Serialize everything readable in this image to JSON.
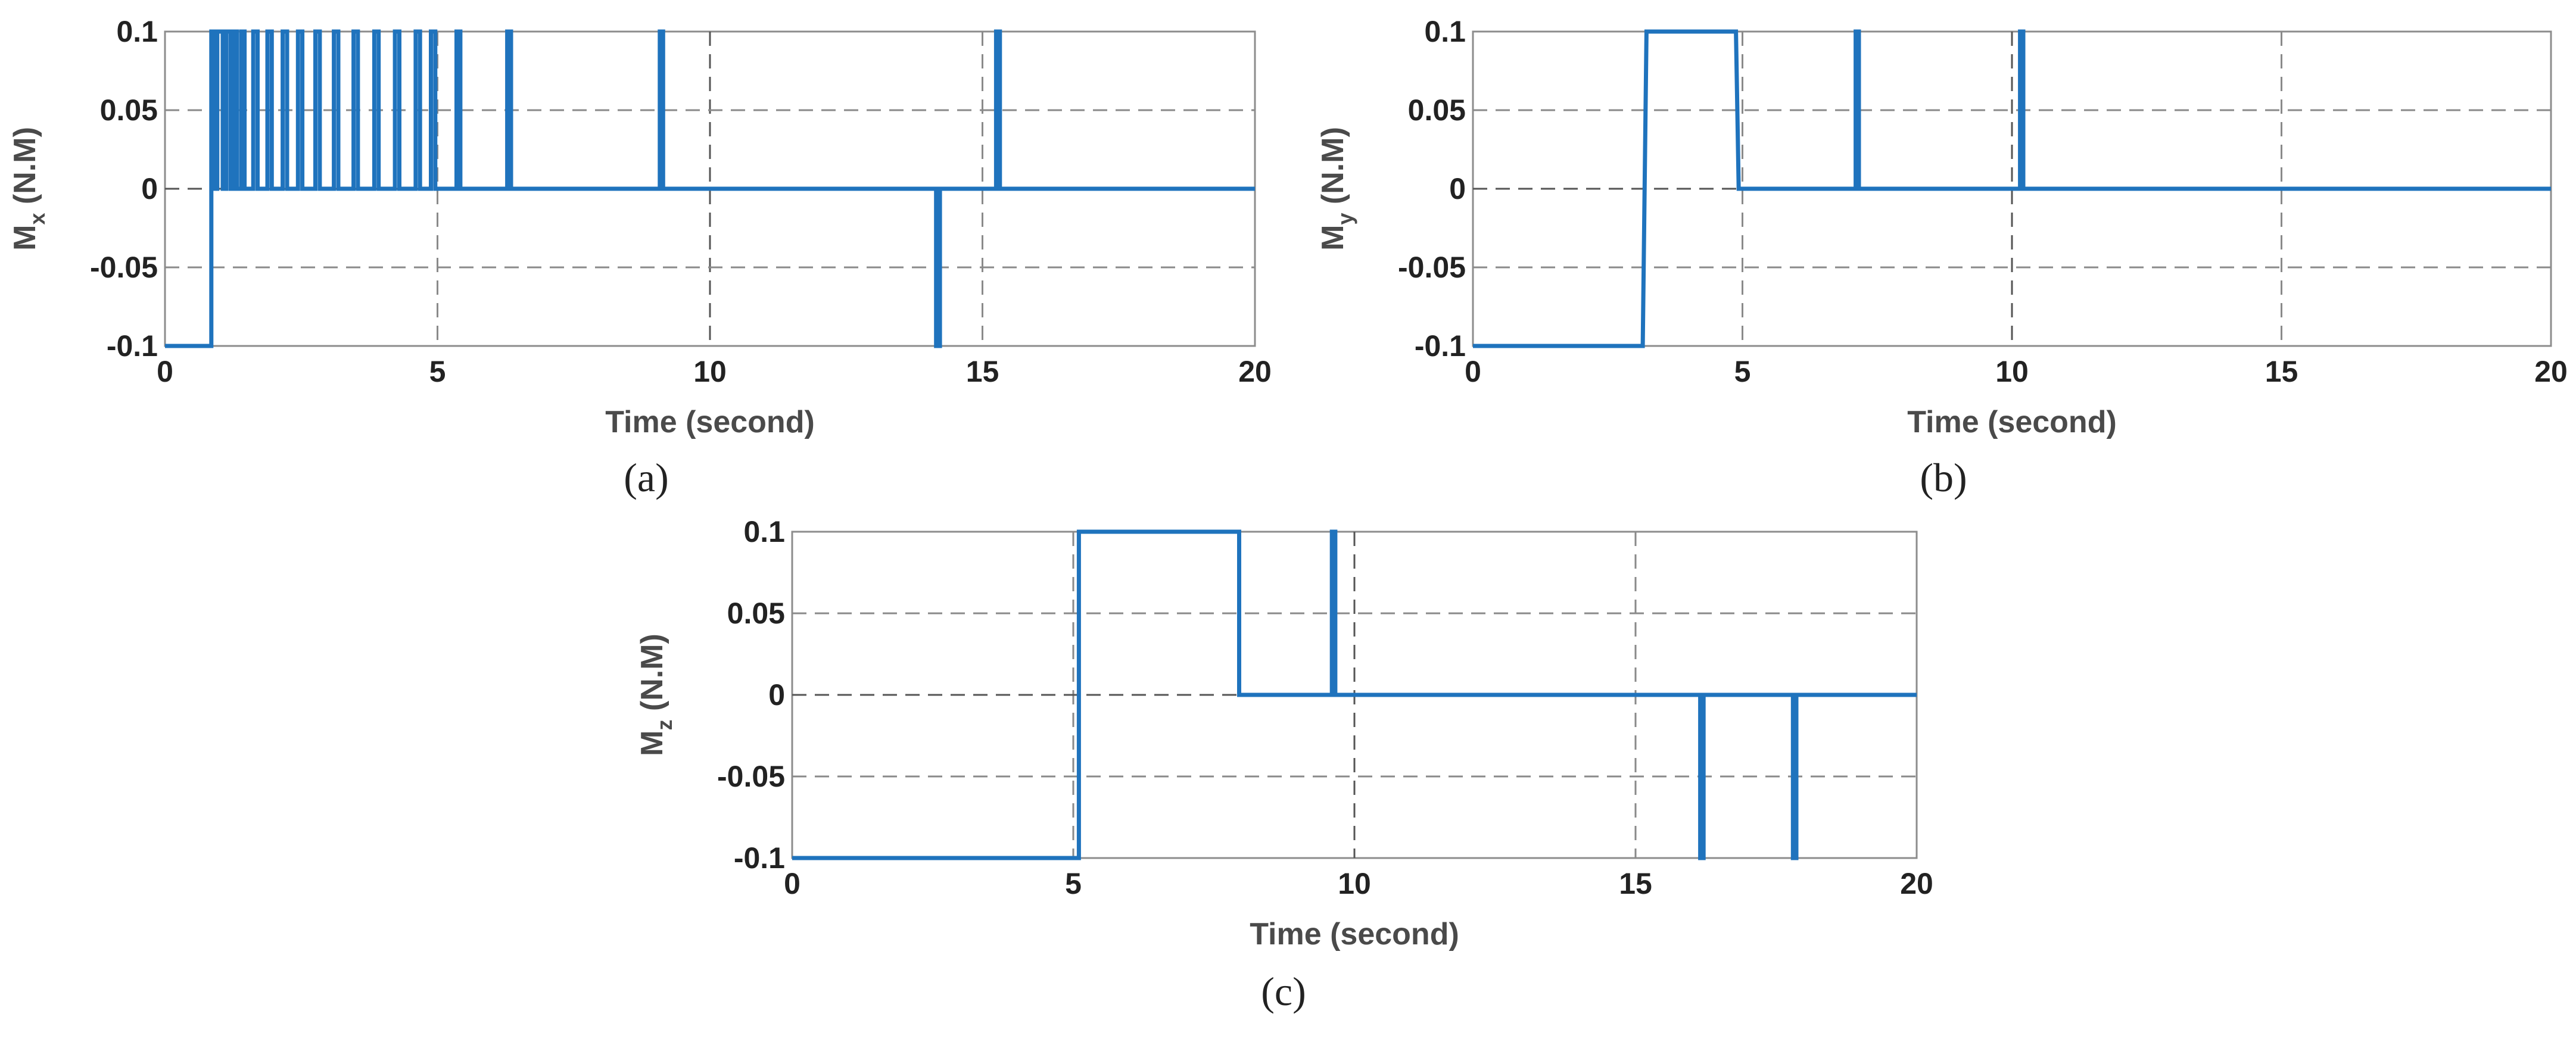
{
  "figure": {
    "colors": {
      "signal": "#1f73bd",
      "grid": "#8a8a8a",
      "frame": "#8c8c8c"
    }
  },
  "chart_data": [
    {
      "type": "line",
      "id": "a",
      "caption": "(a)",
      "title": "",
      "xlabel": "Time (second)",
      "ylabel": {
        "main": "M",
        "sub": "x",
        "unit": " (N.M)"
      },
      "xlim": [
        0,
        20
      ],
      "ylim": [
        -0.1,
        0.1
      ],
      "xticks": [
        "0",
        "5",
        "10",
        "15",
        "20"
      ],
      "yticks": [
        "0.1",
        "0.05",
        "0",
        "-0.05",
        "-0.1"
      ],
      "grid": true,
      "series": [
        {
          "name": "Mx",
          "x": [
            0,
            0.05,
            0.05,
            0.85,
            0.85,
            0.9,
            0.9,
            0.96,
            0.96,
            1.06,
            1.06,
            1.12,
            1.12,
            1.2,
            1.2,
            1.26,
            1.26,
            1.32,
            1.32,
            1.4,
            1.4,
            1.46,
            1.46,
            1.62,
            1.62,
            1.7,
            1.7,
            1.88,
            1.88,
            1.96,
            1.96,
            2.16,
            2.16,
            2.24,
            2.24,
            2.44,
            2.44,
            2.52,
            2.52,
            2.76,
            2.76,
            2.84,
            2.84,
            3.1,
            3.1,
            3.18,
            3.18,
            3.46,
            3.46,
            3.54,
            3.54,
            3.84,
            3.84,
            3.92,
            3.92,
            4.22,
            4.22,
            4.3,
            4.3,
            4.6,
            4.6,
            4.68,
            4.68,
            4.88,
            4.88,
            4.96,
            4.96,
            5.35,
            5.35,
            5.42,
            5.42,
            6.28,
            6.28,
            6.35,
            6.35,
            9.08,
            9.08,
            9.14,
            9.14,
            14.15,
            14.15,
            14.22,
            14.22,
            15.25,
            15.25,
            15.32,
            15.32,
            20
          ],
          "y": [
            -0.1,
            -0.1,
            -0.1,
            -0.1,
            0.1,
            0.1,
            0,
            0,
            0.1,
            0.1,
            0,
            0,
            0.1,
            0.1,
            0,
            0,
            0.1,
            0.1,
            0,
            0,
            0.1,
            0.1,
            0,
            0,
            0.1,
            0.1,
            0,
            0,
            0.1,
            0.1,
            0,
            0,
            0.1,
            0.1,
            0,
            0,
            0.1,
            0.1,
            0,
            0,
            0.1,
            0.1,
            0,
            0,
            0.1,
            0.1,
            0,
            0,
            0.1,
            0.1,
            0,
            0,
            0.1,
            0.1,
            0,
            0,
            0.1,
            0.1,
            0,
            0,
            0.1,
            0.1,
            0,
            0,
            0.1,
            0.1,
            0,
            0,
            0.1,
            0.1,
            0,
            0,
            0.1,
            0.1,
            0,
            0,
            0.1,
            0.1,
            0,
            0,
            -0.1,
            -0.1,
            0,
            0,
            0.1,
            0.1,
            0,
            0
          ]
        }
      ]
    },
    {
      "type": "line",
      "id": "b",
      "caption": "(b)",
      "title": "",
      "xlabel": "Time (second)",
      "ylabel": {
        "main": "M",
        "sub": "y",
        "unit": " (N.M)"
      },
      "xlim": [
        0,
        20
      ],
      "ylim": [
        -0.1,
        0.1
      ],
      "xticks": [
        "0",
        "5",
        "10",
        "15",
        "20"
      ],
      "yticks": [
        "0.1",
        "0.05",
        "0",
        "-0.05",
        "-0.1"
      ],
      "grid": true,
      "series": [
        {
          "name": "My",
          "x": [
            0,
            3.15,
            3.22,
            4.88,
            4.93,
            7.1,
            7.1,
            7.16,
            7.16,
            10.15,
            10.15,
            10.21,
            10.21,
            20
          ],
          "y": [
            -0.1,
            -0.1,
            0.1,
            0.1,
            0,
            0,
            0.1,
            0.1,
            0,
            0,
            0.1,
            0.1,
            0,
            0
          ]
        }
      ]
    },
    {
      "type": "line",
      "id": "c",
      "caption": "(c)",
      "title": "",
      "xlabel": "Time (second)",
      "ylabel": {
        "main": "M",
        "sub": "z",
        "unit": " (N.M)"
      },
      "xlim": [
        0,
        20
      ],
      "ylim": [
        -0.1,
        0.1
      ],
      "xticks": [
        "0",
        "5",
        "10",
        "15",
        "20"
      ],
      "yticks": [
        "0.1",
        "0.05",
        "0",
        "-0.05",
        "-0.1"
      ],
      "grid": true,
      "series": [
        {
          "name": "Mz",
          "x": [
            0,
            5.1,
            5.1,
            7.95,
            7.95,
            9.6,
            9.6,
            9.66,
            9.66,
            16.15,
            16.15,
            16.21,
            16.21,
            17.8,
            17.8,
            17.86,
            17.86,
            20
          ],
          "y": [
            -0.1,
            -0.1,
            0.1,
            0.1,
            0,
            0,
            0.1,
            0.1,
            0,
            0,
            -0.1,
            -0.1,
            0,
            0,
            -0.1,
            -0.1,
            0,
            0
          ]
        }
      ]
    }
  ]
}
